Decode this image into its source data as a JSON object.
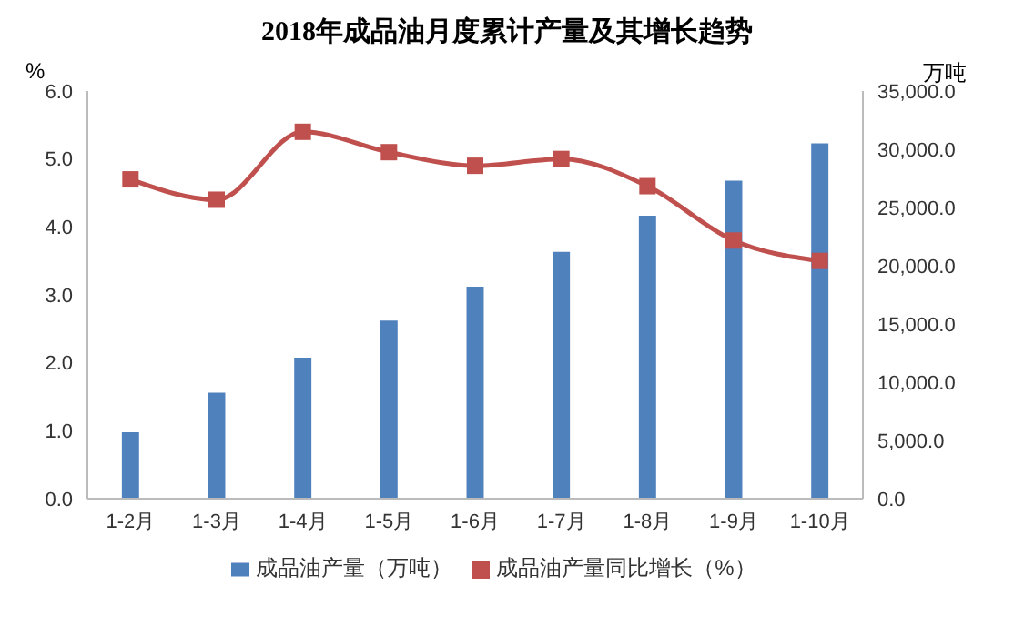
{
  "chart_data": {
    "type": "bar",
    "title": "2018年成品油月度累计产量及其增长趋势",
    "ylabel": "%",
    "y2label": "万吨",
    "categories": [
      "1-2月",
      "1-3月",
      "1-4月",
      "1-5月",
      "1-6月",
      "1-7月",
      "1-8月",
      "1-9月",
      "1-10月"
    ],
    "series": [
      {
        "name": "成品油产量（万吨）",
        "axis": "y2",
        "color": "#4f81bd",
        "values": [
          5700,
          9100,
          12100,
          15300,
          18200,
          21200,
          24300,
          27300,
          30500
        ]
      },
      {
        "name": "成品油产量同比增长（%）",
        "type": "line",
        "axis": "y",
        "color": "#c0504d",
        "values": [
          4.7,
          4.4,
          5.4,
          5.1,
          4.9,
          5.0,
          4.6,
          3.8,
          3.5
        ]
      }
    ],
    "ylim": [
      0,
      6
    ],
    "yticks": [
      {
        "value": 0,
        "label": "0.0"
      },
      {
        "value": 1,
        "label": "1.0"
      },
      {
        "value": 2,
        "label": "2.0"
      },
      {
        "value": 3,
        "label": "3.0"
      },
      {
        "value": 4,
        "label": "4.0"
      },
      {
        "value": 5,
        "label": "5.0"
      },
      {
        "value": 6,
        "label": "6.0"
      }
    ],
    "y2lim": [
      0,
      35000
    ],
    "y2ticks": [
      {
        "value": 0,
        "label": "0.0"
      },
      {
        "value": 5000,
        "label": "5,000.0"
      },
      {
        "value": 10000,
        "label": "10,000.0"
      },
      {
        "value": 15000,
        "label": "15,000.0"
      },
      {
        "value": 20000,
        "label": "20,000.0"
      },
      {
        "value": 25000,
        "label": "25,000.0"
      },
      {
        "value": 30000,
        "label": "30,000.0"
      },
      {
        "value": 35000,
        "label": "35,000.0"
      }
    ],
    "marker": "square",
    "legend": "bottom",
    "grid": false
  }
}
